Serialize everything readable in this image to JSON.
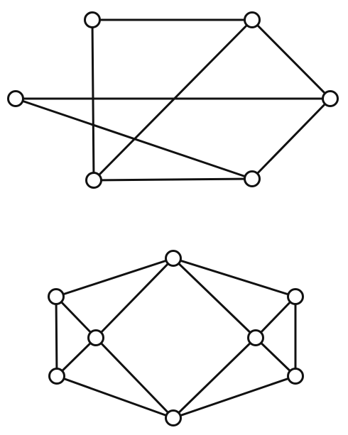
{
  "style": {
    "background": "#ffffff",
    "stroke": "#111111",
    "node_fill": "#ffffff"
  },
  "graphs": [
    {
      "name": "graph-top",
      "nodes": [
        "a",
        "b",
        "c",
        "d",
        "e",
        "f"
      ],
      "edges": [
        [
          "a",
          "b"
        ],
        [
          "b",
          "c"
        ],
        [
          "c",
          "f"
        ],
        [
          "f",
          "d"
        ],
        [
          "d",
          "e"
        ],
        [
          "e",
          "a"
        ],
        [
          "b",
          "e"
        ],
        [
          "c",
          "d"
        ]
      ]
    },
    {
      "name": "graph-bottom",
      "nodes": [
        "top",
        "left-top",
        "left-mid",
        "left-bottom",
        "bottom",
        "right-top",
        "right-mid",
        "right-bottom"
      ],
      "edges": [
        [
          "top",
          "left-top"
        ],
        [
          "top",
          "right-top"
        ],
        [
          "top",
          "left-mid"
        ],
        [
          "top",
          "right-mid"
        ],
        [
          "left-top",
          "left-bottom"
        ],
        [
          "left-top",
          "left-mid"
        ],
        [
          "left-mid",
          "left-bottom"
        ],
        [
          "left-mid",
          "bottom"
        ],
        [
          "left-bottom",
          "bottom"
        ],
        [
          "right-top",
          "right-bottom"
        ],
        [
          "right-top",
          "right-mid"
        ],
        [
          "right-mid",
          "right-bottom"
        ],
        [
          "right-mid",
          "bottom"
        ],
        [
          "right-bottom",
          "bottom"
        ]
      ]
    }
  ]
}
